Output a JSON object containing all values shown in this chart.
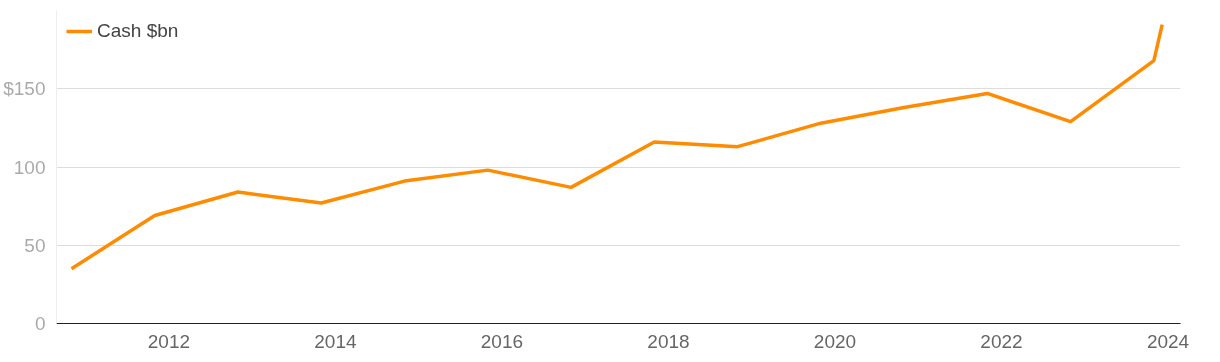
{
  "chart_data": {
    "type": "line",
    "x": [
      2010.83,
      2011.83,
      2012.83,
      2013.83,
      2014.83,
      2015.83,
      2016.83,
      2017.83,
      2018.83,
      2019.83,
      2020.83,
      2021.83,
      2022.83,
      2023.83,
      2023.93
    ],
    "series": [
      {
        "name": "Cash $bn",
        "color": "#ff8c00",
        "values": [
          35,
          69,
          84,
          77,
          91,
          98,
          87,
          116,
          113,
          128,
          138,
          147,
          129,
          168,
          191
        ]
      }
    ],
    "xlim": [
      2010.65,
      2024.15
    ],
    "xticks": [
      2012,
      2014,
      2016,
      2018,
      2020,
      2022,
      2024
    ],
    "ylim": [
      0,
      200
    ],
    "yticks": [
      0,
      50,
      100,
      {
        "value": 150,
        "label": "$150"
      }
    ],
    "grid": "y",
    "legend": "top left",
    "marker": "none",
    "line_style": "solid"
  }
}
